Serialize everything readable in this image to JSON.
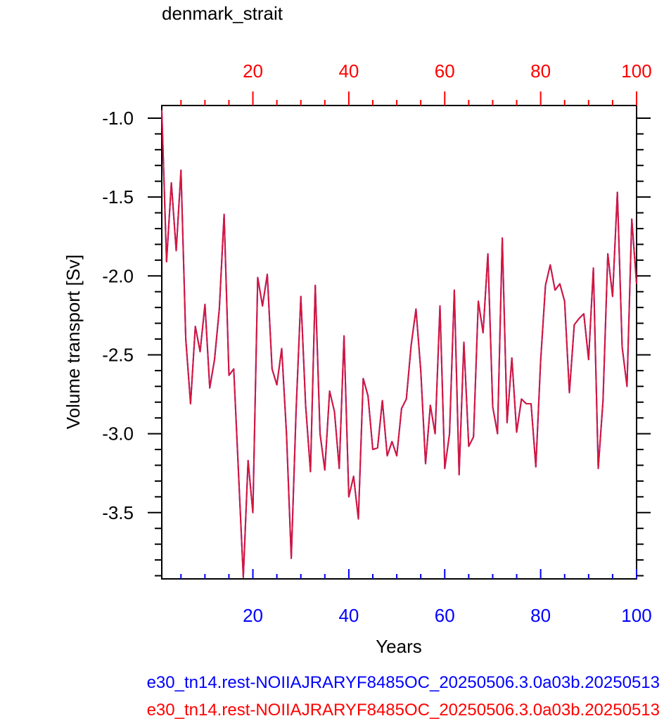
{
  "chart_data": {
    "type": "line",
    "title": "denmark_strait",
    "xlabel": "Years",
    "ylabel": "Volume transport [Sv]",
    "xlim": [
      1,
      100
    ],
    "ylim": [
      -3.92,
      -0.92
    ],
    "bottom_axis": {
      "ticks": [
        20,
        40,
        60,
        80,
        100
      ],
      "labels": [
        "20",
        "40",
        "60",
        "80",
        "100"
      ],
      "color": "#0000ff"
    },
    "top_axis": {
      "ticks": [
        20,
        40,
        60,
        80,
        100
      ],
      "labels": [
        "20",
        "40",
        "60",
        "80",
        "100"
      ],
      "color": "#ff0000"
    },
    "y_ticks": [
      -1.0,
      -1.5,
      -2.0,
      -2.5,
      -3.0,
      -3.5
    ],
    "y_tick_labels": [
      "-1.0",
      "-1.5",
      "-2.0",
      "-2.5",
      "-3.0",
      "-3.5"
    ],
    "grid": false,
    "x": [
      1,
      2,
      3,
      4,
      5,
      6,
      7,
      8,
      9,
      10,
      11,
      12,
      13,
      14,
      15,
      16,
      17,
      18,
      19,
      20,
      21,
      22,
      23,
      24,
      25,
      26,
      27,
      28,
      29,
      30,
      31,
      32,
      33,
      34,
      35,
      36,
      37,
      38,
      39,
      40,
      41,
      42,
      43,
      44,
      45,
      46,
      47,
      48,
      49,
      50,
      51,
      52,
      53,
      54,
      55,
      56,
      57,
      58,
      59,
      60,
      61,
      62,
      63,
      64,
      65,
      66,
      67,
      68,
      69,
      70,
      71,
      72,
      73,
      74,
      75,
      76,
      77,
      78,
      79,
      80,
      81,
      82,
      83,
      84,
      85,
      86,
      87,
      88,
      89,
      90,
      91,
      92,
      93,
      94,
      95,
      96,
      97,
      98,
      99,
      100
    ],
    "series": [
      {
        "name": "e30_tn14.rest-NOIIAJRARYF8485OC_20250506.3.0a03b.20250513",
        "color": "#0000ff",
        "values": [
          -0.95,
          -1.91,
          -1.41,
          -1.84,
          -1.33,
          -2.4,
          -2.81,
          -2.32,
          -2.48,
          -2.18,
          -2.71,
          -2.53,
          -2.21,
          -1.61,
          -2.63,
          -2.59,
          -3.25,
          -3.91,
          -3.17,
          -3.5,
          -2.01,
          -2.19,
          -1.99,
          -2.59,
          -2.69,
          -2.46,
          -3.0,
          -3.79,
          -2.86,
          -2.13,
          -2.82,
          -3.24,
          -2.06,
          -3.0,
          -3.23,
          -2.73,
          -2.86,
          -3.22,
          -2.38,
          -3.4,
          -3.27,
          -3.54,
          -2.65,
          -2.76,
          -3.1,
          -3.09,
          -2.79,
          -3.14,
          -3.05,
          -3.14,
          -2.84,
          -2.78,
          -2.44,
          -2.21,
          -2.6,
          -3.19,
          -2.82,
          -3.0,
          -2.19,
          -3.22,
          -3.0,
          -2.09,
          -3.26,
          -2.42,
          -3.08,
          -3.02,
          -2.16,
          -2.36,
          -1.86,
          -2.83,
          -3.0,
          -1.76,
          -2.93,
          -2.52,
          -2.99,
          -2.78,
          -2.81,
          -2.81,
          -3.21,
          -2.54,
          -2.06,
          -1.93,
          -2.09,
          -2.05,
          -2.16,
          -2.74,
          -2.31,
          -2.27,
          -2.24,
          -2.53,
          -1.95,
          -3.22,
          -2.79,
          -1.86,
          -2.13,
          -1.47,
          -2.45,
          -2.7,
          -1.64,
          -2.05
        ]
      },
      {
        "name": "e30_tn14.rest-NOIIAJRARYF8485OC_20250506.3.0a03b.20250513",
        "color": "#ff0000",
        "values": [
          -0.95,
          -1.91,
          -1.41,
          -1.84,
          -1.33,
          -2.4,
          -2.81,
          -2.32,
          -2.48,
          -2.18,
          -2.71,
          -2.53,
          -2.21,
          -1.61,
          -2.63,
          -2.59,
          -3.25,
          -3.91,
          -3.17,
          -3.5,
          -2.01,
          -2.19,
          -1.99,
          -2.59,
          -2.69,
          -2.46,
          -3.0,
          -3.79,
          -2.86,
          -2.13,
          -2.82,
          -3.24,
          -2.06,
          -3.0,
          -3.23,
          -2.73,
          -2.86,
          -3.22,
          -2.38,
          -3.4,
          -3.27,
          -3.54,
          -2.65,
          -2.76,
          -3.1,
          -3.09,
          -2.79,
          -3.14,
          -3.05,
          -3.14,
          -2.84,
          -2.78,
          -2.44,
          -2.21,
          -2.6,
          -3.19,
          -2.82,
          -3.0,
          -2.19,
          -3.22,
          -3.0,
          -2.09,
          -3.26,
          -2.42,
          -3.08,
          -3.02,
          -2.16,
          -2.36,
          -1.86,
          -2.83,
          -3.0,
          -1.76,
          -2.93,
          -2.52,
          -2.99,
          -2.78,
          -2.81,
          -2.81,
          -3.21,
          -2.54,
          -2.06,
          -1.93,
          -2.09,
          -2.05,
          -2.16,
          -2.74,
          -2.31,
          -2.27,
          -2.24,
          -2.53,
          -1.95,
          -3.22,
          -2.79,
          -1.86,
          -2.13,
          -1.47,
          -2.45,
          -2.7,
          -1.64,
          -2.05
        ]
      }
    ]
  }
}
